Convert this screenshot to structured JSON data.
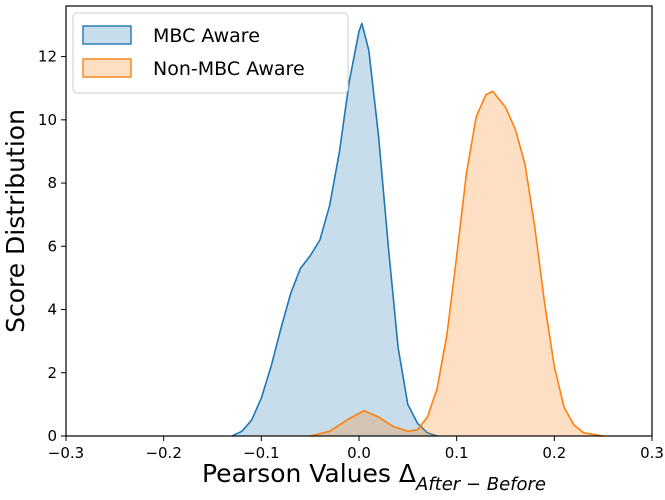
{
  "chart_data": {
    "type": "area",
    "xlabel": "Pearson Values Δ",
    "xlabel_subscript": "After − Before",
    "ylabel": "Score Distribution",
    "xlim": [
      -0.3,
      0.3
    ],
    "ylim": [
      0,
      13.6
    ],
    "x_ticks": [
      -0.3,
      -0.2,
      -0.1,
      0.0,
      0.1,
      0.2,
      0.3
    ],
    "x_tick_labels": [
      "−0.3",
      "−0.2",
      "−0.1",
      "0.0",
      "0.1",
      "0.2",
      "0.3"
    ],
    "y_ticks": [
      0,
      2,
      4,
      6,
      8,
      10,
      12
    ],
    "y_tick_labels": [
      "0",
      "2",
      "4",
      "6",
      "8",
      "10",
      "12"
    ],
    "grid": false,
    "legend_position": "top-left",
    "series": [
      {
        "name": "MBC Aware",
        "line_color": "#1f77b4",
        "fill_color": "#1f77b4",
        "points": [
          [
            -0.13,
            0.0
          ],
          [
            -0.12,
            0.15
          ],
          [
            -0.11,
            0.5
          ],
          [
            -0.1,
            1.2
          ],
          [
            -0.09,
            2.2
          ],
          [
            -0.08,
            3.4
          ],
          [
            -0.07,
            4.5
          ],
          [
            -0.06,
            5.3
          ],
          [
            -0.05,
            5.7
          ],
          [
            -0.04,
            6.2
          ],
          [
            -0.03,
            7.3
          ],
          [
            -0.02,
            9.0
          ],
          [
            -0.01,
            11.2
          ],
          [
            0.0,
            12.8
          ],
          [
            0.003,
            13.05
          ],
          [
            0.01,
            12.2
          ],
          [
            0.02,
            9.5
          ],
          [
            0.03,
            6.0
          ],
          [
            0.04,
            2.8
          ],
          [
            0.05,
            1.0
          ],
          [
            0.06,
            0.4
          ],
          [
            0.07,
            0.1
          ],
          [
            0.08,
            0.0
          ]
        ]
      },
      {
        "name": "Non-MBC Aware",
        "line_color": "#ff7f0e",
        "fill_color": "#ff7f0e",
        "points": [
          [
            -0.05,
            0.0
          ],
          [
            -0.03,
            0.15
          ],
          [
            -0.01,
            0.55
          ],
          [
            0.005,
            0.8
          ],
          [
            0.02,
            0.6
          ],
          [
            0.035,
            0.3
          ],
          [
            0.05,
            0.15
          ],
          [
            0.06,
            0.2
          ],
          [
            0.07,
            0.6
          ],
          [
            0.08,
            1.5
          ],
          [
            0.09,
            3.2
          ],
          [
            0.1,
            5.7
          ],
          [
            0.11,
            8.3
          ],
          [
            0.12,
            10.1
          ],
          [
            0.13,
            10.8
          ],
          [
            0.137,
            10.9
          ],
          [
            0.15,
            10.4
          ],
          [
            0.16,
            9.7
          ],
          [
            0.17,
            8.6
          ],
          [
            0.18,
            6.6
          ],
          [
            0.19,
            4.2
          ],
          [
            0.2,
            2.2
          ],
          [
            0.21,
            0.9
          ],
          [
            0.22,
            0.35
          ],
          [
            0.23,
            0.1
          ],
          [
            0.25,
            0.0
          ]
        ]
      }
    ]
  }
}
